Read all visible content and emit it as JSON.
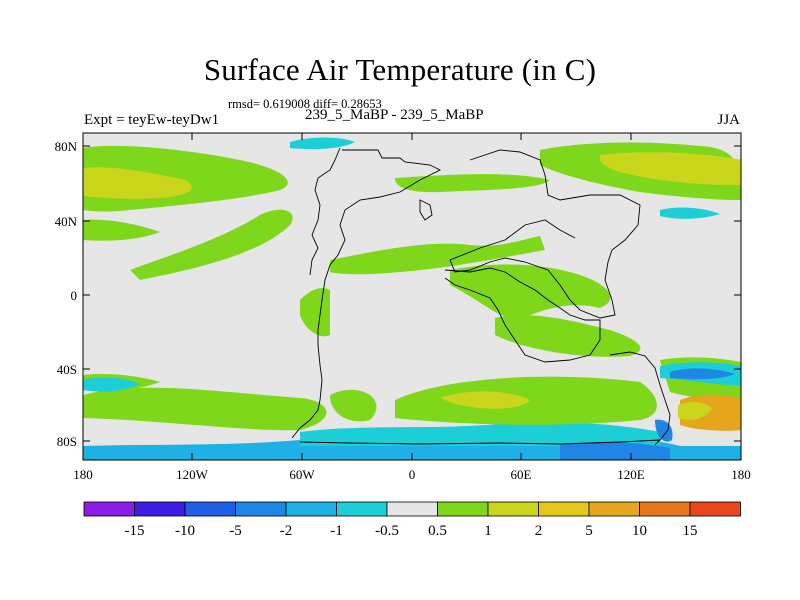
{
  "title": "Surface Air Temperature (in C)",
  "stats_line": "rmsd= 0.619008 diff= 0.28653",
  "experiment_label": "Expt = teyEw-teyDw1",
  "runs_label": "239_5_MaBP - 239_5_MaBP",
  "season_label": "JJA",
  "map": {
    "lat_ticks": [
      "80N",
      "40N",
      "0",
      "40S",
      "80S"
    ],
    "lon_ticks": [
      "180",
      "120W",
      "60W",
      "0",
      "60E",
      "120E",
      "180"
    ],
    "colors": {
      "background": "#e6e6e6",
      "green": "#7fd71c",
      "yellow_green": "#c9d61b",
      "cyan": "#1ccfd6",
      "sky_blue": "#1fb1e6",
      "blue": "#1f86e6",
      "orange": "#e6a61b"
    }
  },
  "colorbar": {
    "labels": [
      "-15",
      "-10",
      "-5",
      "-2",
      "-1",
      "-0.5",
      "0.5",
      "1",
      "2",
      "5",
      "10",
      "15"
    ],
    "colors": [
      "#8a1de6",
      "#3d1de6",
      "#1f5fe6",
      "#1f86e6",
      "#1fb1e6",
      "#1ccfd6",
      "#e6e6e6",
      "#7fd71c",
      "#c9d61b",
      "#e6c81b",
      "#e6a61b",
      "#e6781b",
      "#e6471b"
    ]
  }
}
